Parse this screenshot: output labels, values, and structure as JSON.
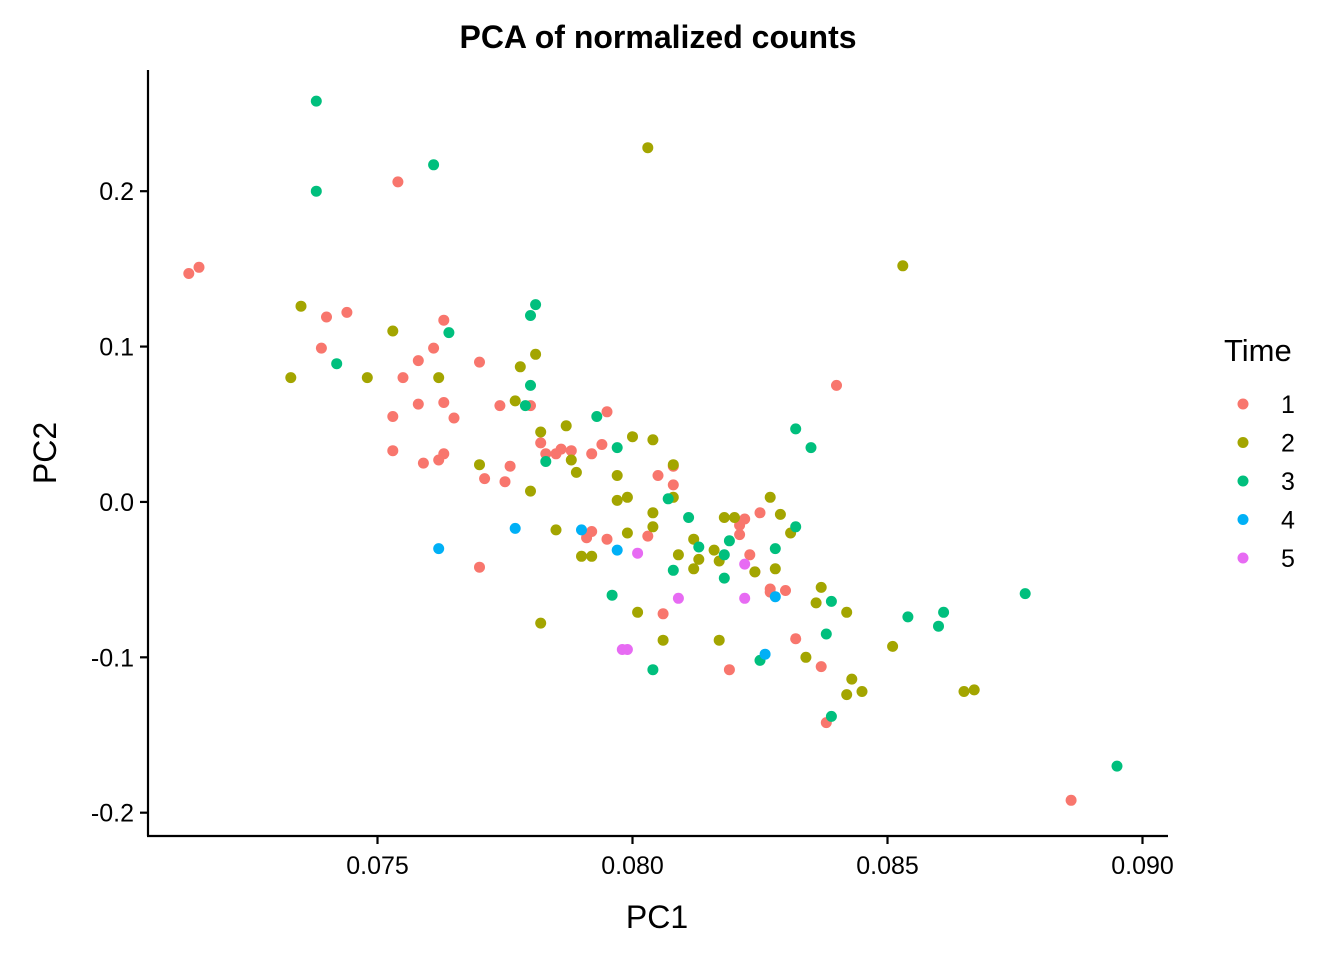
{
  "chart_data": {
    "type": "scatter",
    "title": "PCA of normalized counts",
    "xlabel": "PC1",
    "ylabel": "PC2",
    "xlim": [
      0.0705,
      0.0905
    ],
    "ylim": [
      -0.215,
      0.278
    ],
    "x_ticks": [
      0.075,
      0.08,
      0.085,
      0.09
    ],
    "x_tick_labels": [
      "0.075",
      "0.080",
      "0.085",
      "0.090"
    ],
    "y_ticks": [
      -0.2,
      -0.1,
      0.0,
      0.1,
      0.2
    ],
    "y_tick_labels": [
      "-0.2",
      "-0.1",
      "0.0",
      "0.1",
      "0.2"
    ],
    "grid": false,
    "legend": {
      "title": "Time",
      "position": "right"
    },
    "series": [
      {
        "name": "1",
        "color": "#F8766D",
        "points": [
          [
            0.0713,
            0.147
          ],
          [
            0.0715,
            0.151
          ],
          [
            0.0754,
            0.206
          ],
          [
            0.0739,
            0.099
          ],
          [
            0.074,
            0.119
          ],
          [
            0.0744,
            0.122
          ],
          [
            0.0753,
            0.055
          ],
          [
            0.0753,
            0.033
          ],
          [
            0.0755,
            0.08
          ],
          [
            0.0758,
            0.091
          ],
          [
            0.0758,
            0.063
          ],
          [
            0.0759,
            0.025
          ],
          [
            0.0761,
            0.099
          ],
          [
            0.0762,
            0.027
          ],
          [
            0.0763,
            0.064
          ],
          [
            0.0763,
            0.031
          ],
          [
            0.0763,
            0.117
          ],
          [
            0.0765,
            0.054
          ],
          [
            0.077,
            0.09
          ],
          [
            0.077,
            -0.042
          ],
          [
            0.0771,
            0.015
          ],
          [
            0.0774,
            0.062
          ],
          [
            0.0775,
            0.013
          ],
          [
            0.0776,
            0.023
          ],
          [
            0.078,
            0.062
          ],
          [
            0.0782,
            0.038
          ],
          [
            0.0783,
            0.031
          ],
          [
            0.0785,
            0.031
          ],
          [
            0.0786,
            0.034
          ],
          [
            0.0788,
            0.033
          ],
          [
            0.0791,
            -0.023
          ],
          [
            0.0792,
            0.031
          ],
          [
            0.0792,
            -0.019
          ],
          [
            0.0794,
            0.037
          ],
          [
            0.0795,
            -0.024
          ],
          [
            0.0795,
            0.058
          ],
          [
            0.0803,
            -0.022
          ],
          [
            0.0805,
            0.017
          ],
          [
            0.0806,
            -0.072
          ],
          [
            0.0808,
            0.011
          ],
          [
            0.0808,
            0.023
          ],
          [
            0.0819,
            -0.108
          ],
          [
            0.0821,
            -0.015
          ],
          [
            0.0821,
            -0.021
          ],
          [
            0.0822,
            -0.011
          ],
          [
            0.0823,
            -0.034
          ],
          [
            0.0824,
            -0.045
          ],
          [
            0.0825,
            -0.007
          ],
          [
            0.0827,
            -0.056
          ],
          [
            0.0827,
            -0.058
          ],
          [
            0.083,
            -0.057
          ],
          [
            0.0832,
            -0.088
          ],
          [
            0.0837,
            -0.106
          ],
          [
            0.0838,
            -0.142
          ],
          [
            0.084,
            0.075
          ],
          [
            0.0886,
            -0.192
          ]
        ]
      },
      {
        "name": "2",
        "color": "#A3A500",
        "points": [
          [
            0.0733,
            0.08
          ],
          [
            0.0735,
            0.126
          ],
          [
            0.0748,
            0.08
          ],
          [
            0.0753,
            0.11
          ],
          [
            0.0762,
            0.08
          ],
          [
            0.077,
            0.024
          ],
          [
            0.0777,
            0.065
          ],
          [
            0.0778,
            0.087
          ],
          [
            0.078,
            0.007
          ],
          [
            0.0781,
            0.095
          ],
          [
            0.0782,
            0.045
          ],
          [
            0.0782,
            -0.078
          ],
          [
            0.0785,
            -0.018
          ],
          [
            0.0787,
            0.049
          ],
          [
            0.0788,
            0.027
          ],
          [
            0.0789,
            0.019
          ],
          [
            0.079,
            -0.035
          ],
          [
            0.0792,
            -0.035
          ],
          [
            0.0797,
            0.001
          ],
          [
            0.0797,
            0.017
          ],
          [
            0.0799,
            0.003
          ],
          [
            0.0799,
            -0.02
          ],
          [
            0.08,
            0.042
          ],
          [
            0.0801,
            -0.071
          ],
          [
            0.0803,
            0.228
          ],
          [
            0.0804,
            -0.007
          ],
          [
            0.0804,
            -0.016
          ],
          [
            0.0804,
            0.04
          ],
          [
            0.0806,
            -0.089
          ],
          [
            0.0808,
            0.024
          ],
          [
            0.0808,
            0.003
          ],
          [
            0.0809,
            -0.034
          ],
          [
            0.0812,
            -0.024
          ],
          [
            0.0812,
            -0.043
          ],
          [
            0.0813,
            -0.037
          ],
          [
            0.0816,
            -0.031
          ],
          [
            0.0817,
            -0.038
          ],
          [
            0.0817,
            -0.089
          ],
          [
            0.0818,
            -0.01
          ],
          [
            0.082,
            -0.01
          ],
          [
            0.0824,
            -0.045
          ],
          [
            0.0827,
            0.003
          ],
          [
            0.0828,
            -0.043
          ],
          [
            0.0829,
            -0.008
          ],
          [
            0.0831,
            -0.02
          ],
          [
            0.0834,
            -0.1
          ],
          [
            0.0836,
            -0.065
          ],
          [
            0.0837,
            -0.055
          ],
          [
            0.0842,
            -0.071
          ],
          [
            0.0842,
            -0.124
          ],
          [
            0.0843,
            -0.114
          ],
          [
            0.0845,
            -0.122
          ],
          [
            0.0851,
            -0.093
          ],
          [
            0.0853,
            0.152
          ],
          [
            0.0865,
            -0.122
          ],
          [
            0.0867,
            -0.121
          ]
        ]
      },
      {
        "name": "3",
        "color": "#00BF7D",
        "points": [
          [
            0.0738,
            0.258
          ],
          [
            0.0738,
            0.2
          ],
          [
            0.0742,
            0.089
          ],
          [
            0.0761,
            0.217
          ],
          [
            0.0764,
            0.109
          ],
          [
            0.0779,
            0.062
          ],
          [
            0.078,
            0.12
          ],
          [
            0.078,
            0.075
          ],
          [
            0.0781,
            0.127
          ],
          [
            0.0783,
            0.026
          ],
          [
            0.0793,
            0.055
          ],
          [
            0.0796,
            -0.06
          ],
          [
            0.0797,
            0.035
          ],
          [
            0.0804,
            -0.108
          ],
          [
            0.0807,
            0.002
          ],
          [
            0.0808,
            -0.044
          ],
          [
            0.0811,
            -0.01
          ],
          [
            0.0813,
            -0.029
          ],
          [
            0.0818,
            -0.034
          ],
          [
            0.0818,
            -0.049
          ],
          [
            0.0819,
            -0.025
          ],
          [
            0.0825,
            -0.102
          ],
          [
            0.0828,
            -0.03
          ],
          [
            0.0832,
            0.047
          ],
          [
            0.0832,
            -0.016
          ],
          [
            0.0835,
            0.035
          ],
          [
            0.0838,
            -0.085
          ],
          [
            0.0839,
            -0.064
          ],
          [
            0.0839,
            -0.138
          ],
          [
            0.0854,
            -0.074
          ],
          [
            0.086,
            -0.08
          ],
          [
            0.0861,
            -0.071
          ],
          [
            0.0877,
            -0.059
          ],
          [
            0.0895,
            -0.17
          ]
        ]
      },
      {
        "name": "4",
        "color": "#00B0F6",
        "points": [
          [
            0.0762,
            -0.03
          ],
          [
            0.0777,
            -0.017
          ],
          [
            0.079,
            -0.018
          ],
          [
            0.0797,
            -0.031
          ],
          [
            0.0826,
            -0.098
          ],
          [
            0.0828,
            -0.061
          ]
        ]
      },
      {
        "name": "5",
        "color": "#E76BF3",
        "points": [
          [
            0.0798,
            -0.095
          ],
          [
            0.0799,
            -0.095
          ],
          [
            0.0801,
            -0.033
          ],
          [
            0.0809,
            -0.062
          ],
          [
            0.0822,
            -0.04
          ],
          [
            0.0822,
            -0.062
          ]
        ]
      }
    ]
  }
}
